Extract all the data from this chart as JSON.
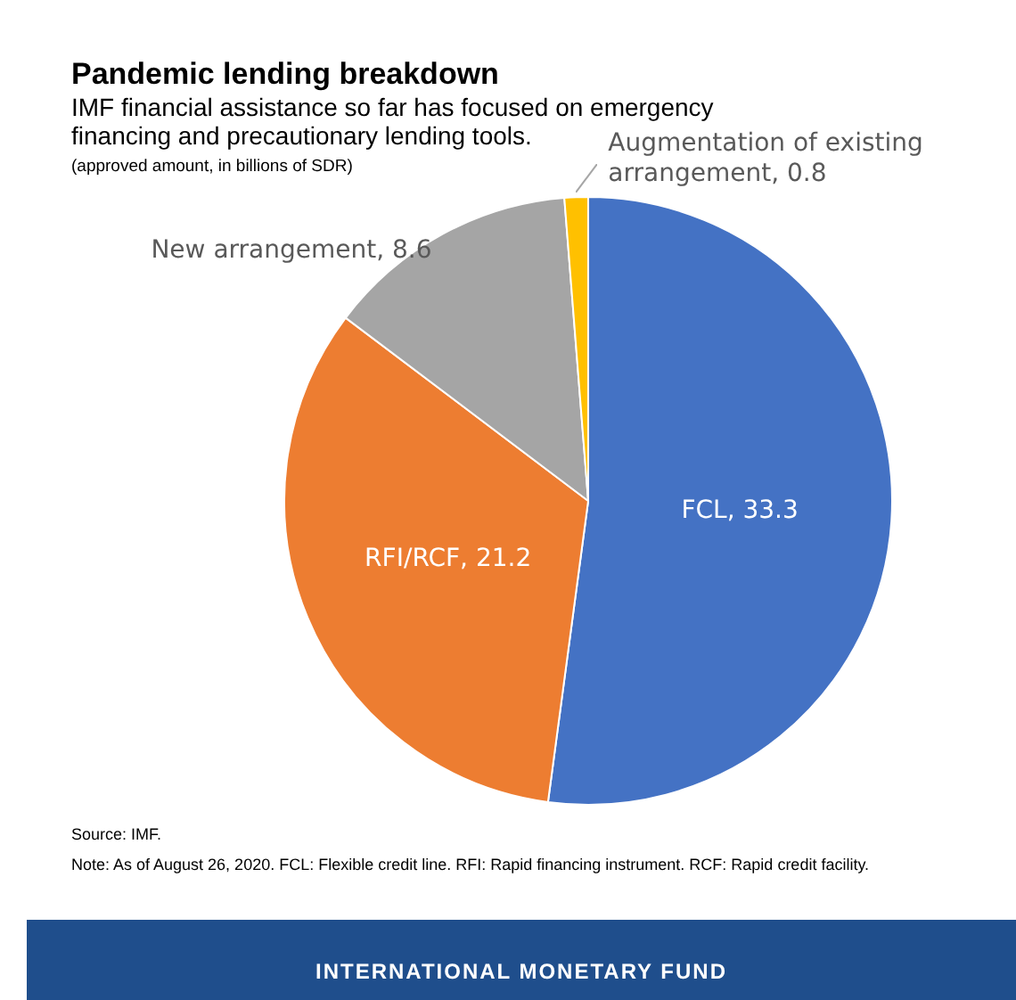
{
  "chart_data": {
    "type": "pie",
    "title": "Pandemic lending breakdown",
    "subtitle": "IMF financial assistance so far has focused on emergency financing and precautionary lending tools.",
    "ylabel": "(approved amount, in billions of SDR)",
    "categories": [
      "FCL",
      "RFI/RCF",
      "New arrangement",
      "Augmentation of existing arrangement"
    ],
    "values": [
      33.3,
      21.2,
      8.6,
      0.8
    ],
    "value_labels": [
      ", 33.3",
      ", 21.2",
      ", 8.6",
      ", 0.8"
    ],
    "colors": [
      "#4472c4",
      "#ed7d31",
      "#a5a5a5",
      "#ffc000"
    ],
    "legend": false,
    "annotations": [
      "Source: IMF.",
      "Note: As of August 26, 2020.  FCL: Flexible credit line. RFI: Rapid financing instrument. RCF: Rapid credit facility.",
      "INTERNATIONAL MONETARY FUND"
    ]
  }
}
